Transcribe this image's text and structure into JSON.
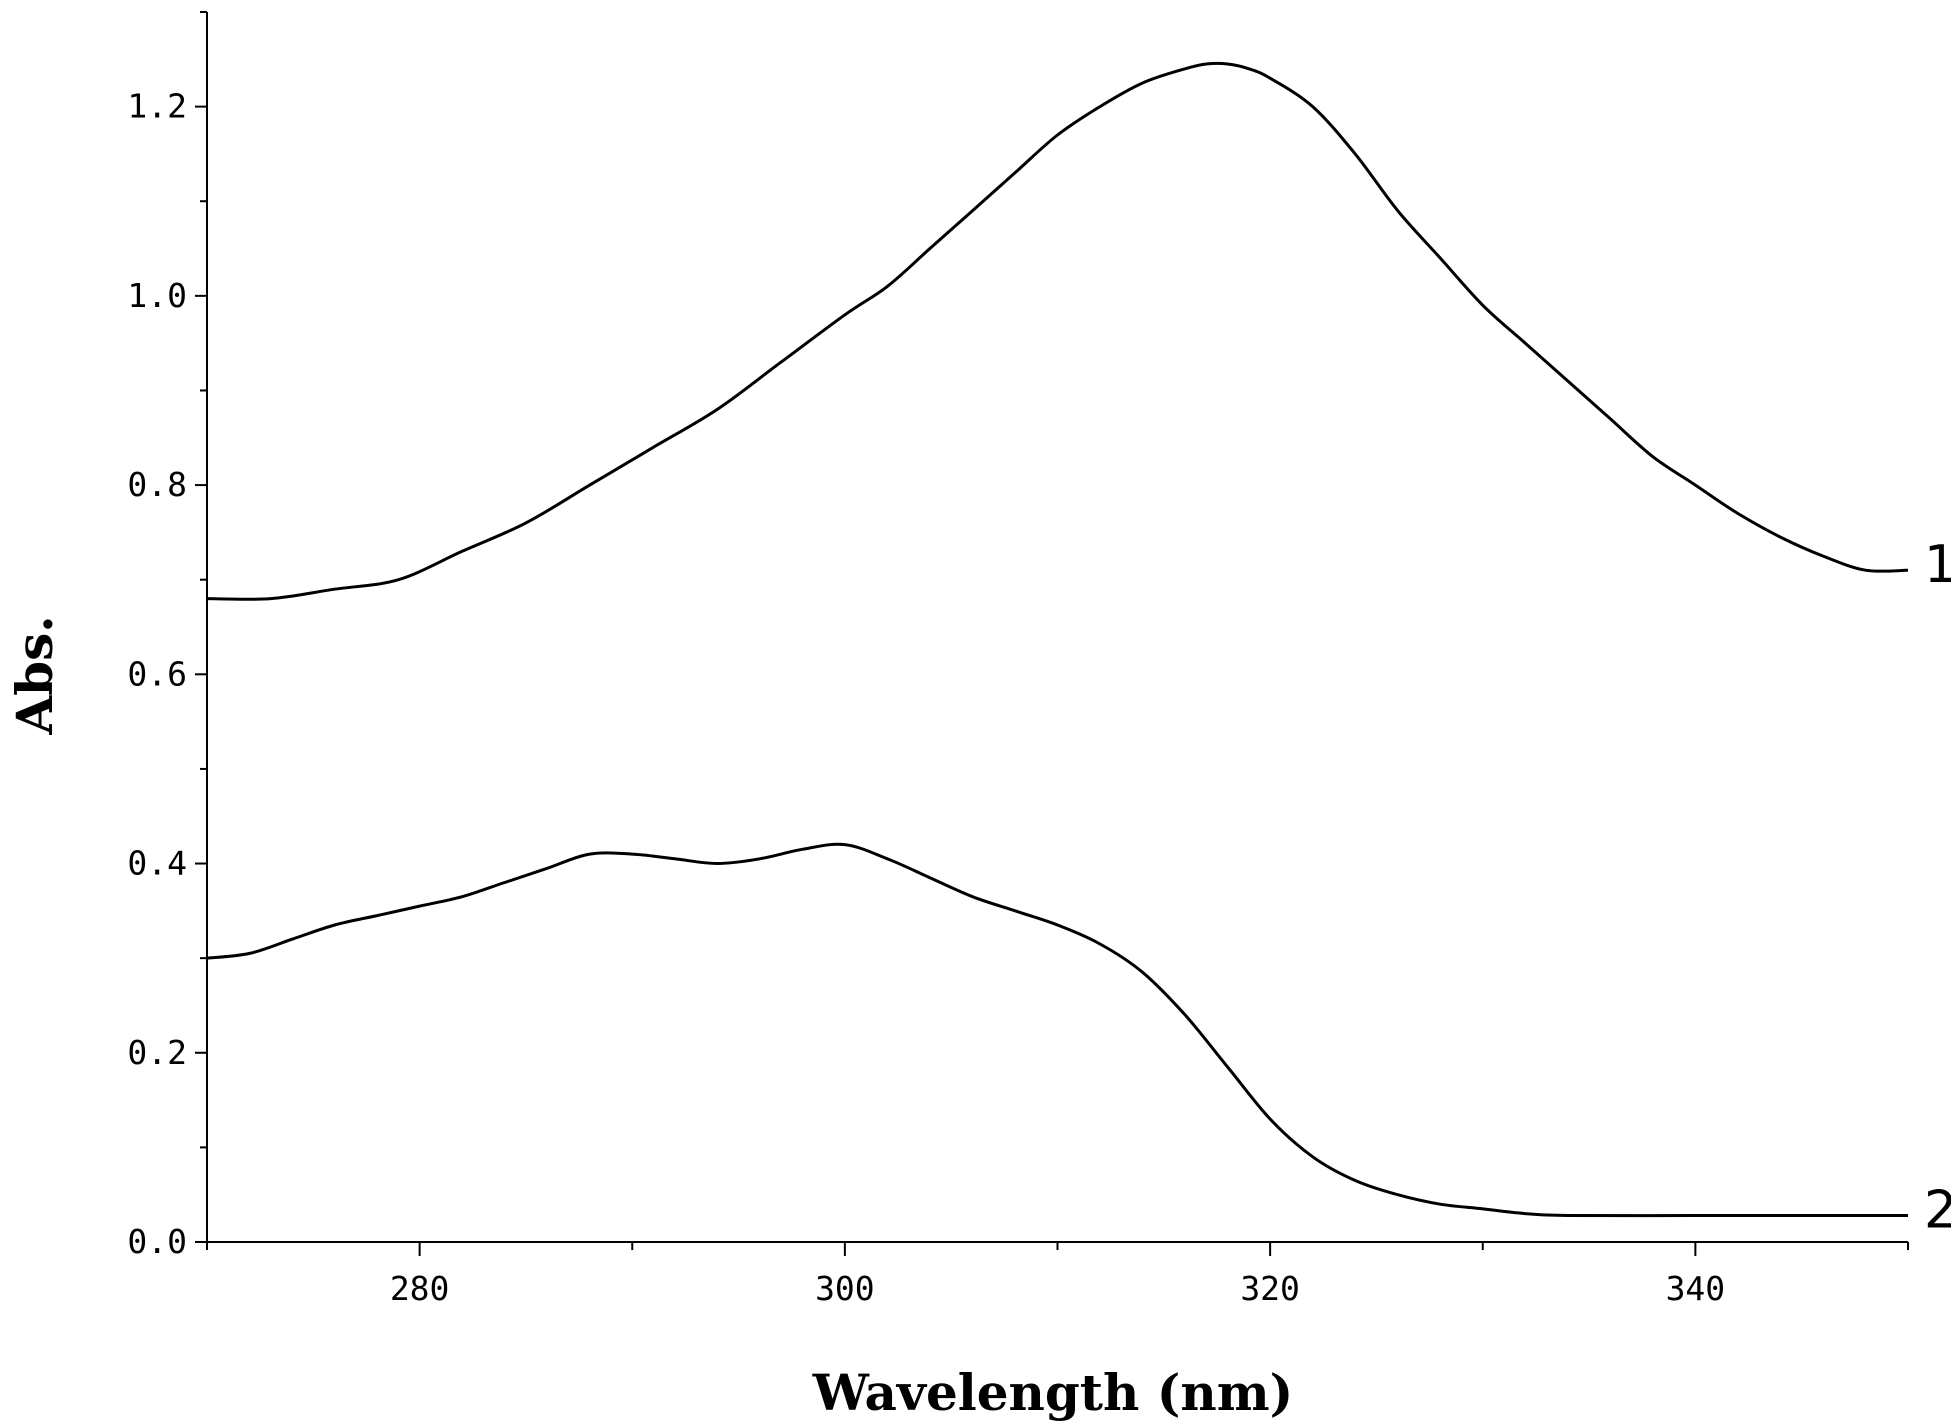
{
  "chart_data": {
    "type": "line",
    "title": "",
    "xlabel": "Wavelength (nm)",
    "ylabel": "Abs.",
    "xlim": [
      270,
      350
    ],
    "ylim": [
      0.0,
      1.3
    ],
    "x_ticks": [
      280,
      300,
      320,
      340
    ],
    "x_tick_labels": [
      "280",
      "300",
      "320",
      "340"
    ],
    "y_ticks": [
      0.0,
      0.2,
      0.4,
      0.6,
      0.8,
      1.0,
      1.2
    ],
    "y_tick_labels": [
      "0.0",
      "0.2",
      "0.4",
      "0.6",
      "0.8",
      "1.0",
      "1.2"
    ],
    "grid": false,
    "legend": "none",
    "series": [
      {
        "name": "1",
        "color": "#000000",
        "x": [
          270,
          273,
          276,
          279,
          282,
          285,
          288,
          291,
          294,
          297,
          300,
          302,
          304,
          306,
          308,
          310,
          312,
          314,
          316,
          317,
          318,
          319,
          320,
          322,
          324,
          326,
          328,
          330,
          332,
          334,
          336,
          338,
          340,
          342,
          344,
          346,
          348,
          350
        ],
        "y": [
          0.68,
          0.68,
          0.69,
          0.7,
          0.73,
          0.76,
          0.8,
          0.84,
          0.88,
          0.93,
          0.98,
          1.01,
          1.05,
          1.09,
          1.13,
          1.17,
          1.2,
          1.225,
          1.24,
          1.245,
          1.245,
          1.24,
          1.23,
          1.2,
          1.15,
          1.09,
          1.04,
          0.99,
          0.95,
          0.91,
          0.87,
          0.83,
          0.8,
          0.77,
          0.745,
          0.725,
          0.71,
          0.71
        ]
      },
      {
        "name": "2",
        "color": "#000000",
        "x": [
          270,
          272,
          274,
          276,
          278,
          280,
          282,
          284,
          286,
          288,
          290,
          292,
          294,
          296,
          298,
          300,
          302,
          304,
          306,
          308,
          310,
          312,
          314,
          316,
          318,
          320,
          322,
          324,
          326,
          328,
          330,
          332,
          334,
          340,
          345,
          350
        ],
        "y": [
          0.3,
          0.305,
          0.32,
          0.335,
          0.345,
          0.355,
          0.365,
          0.38,
          0.395,
          0.41,
          0.41,
          0.405,
          0.4,
          0.405,
          0.415,
          0.42,
          0.405,
          0.385,
          0.365,
          0.35,
          0.335,
          0.315,
          0.285,
          0.24,
          0.185,
          0.13,
          0.09,
          0.065,
          0.05,
          0.04,
          0.035,
          0.03,
          0.028,
          0.028,
          0.028,
          0.028
        ]
      }
    ]
  }
}
